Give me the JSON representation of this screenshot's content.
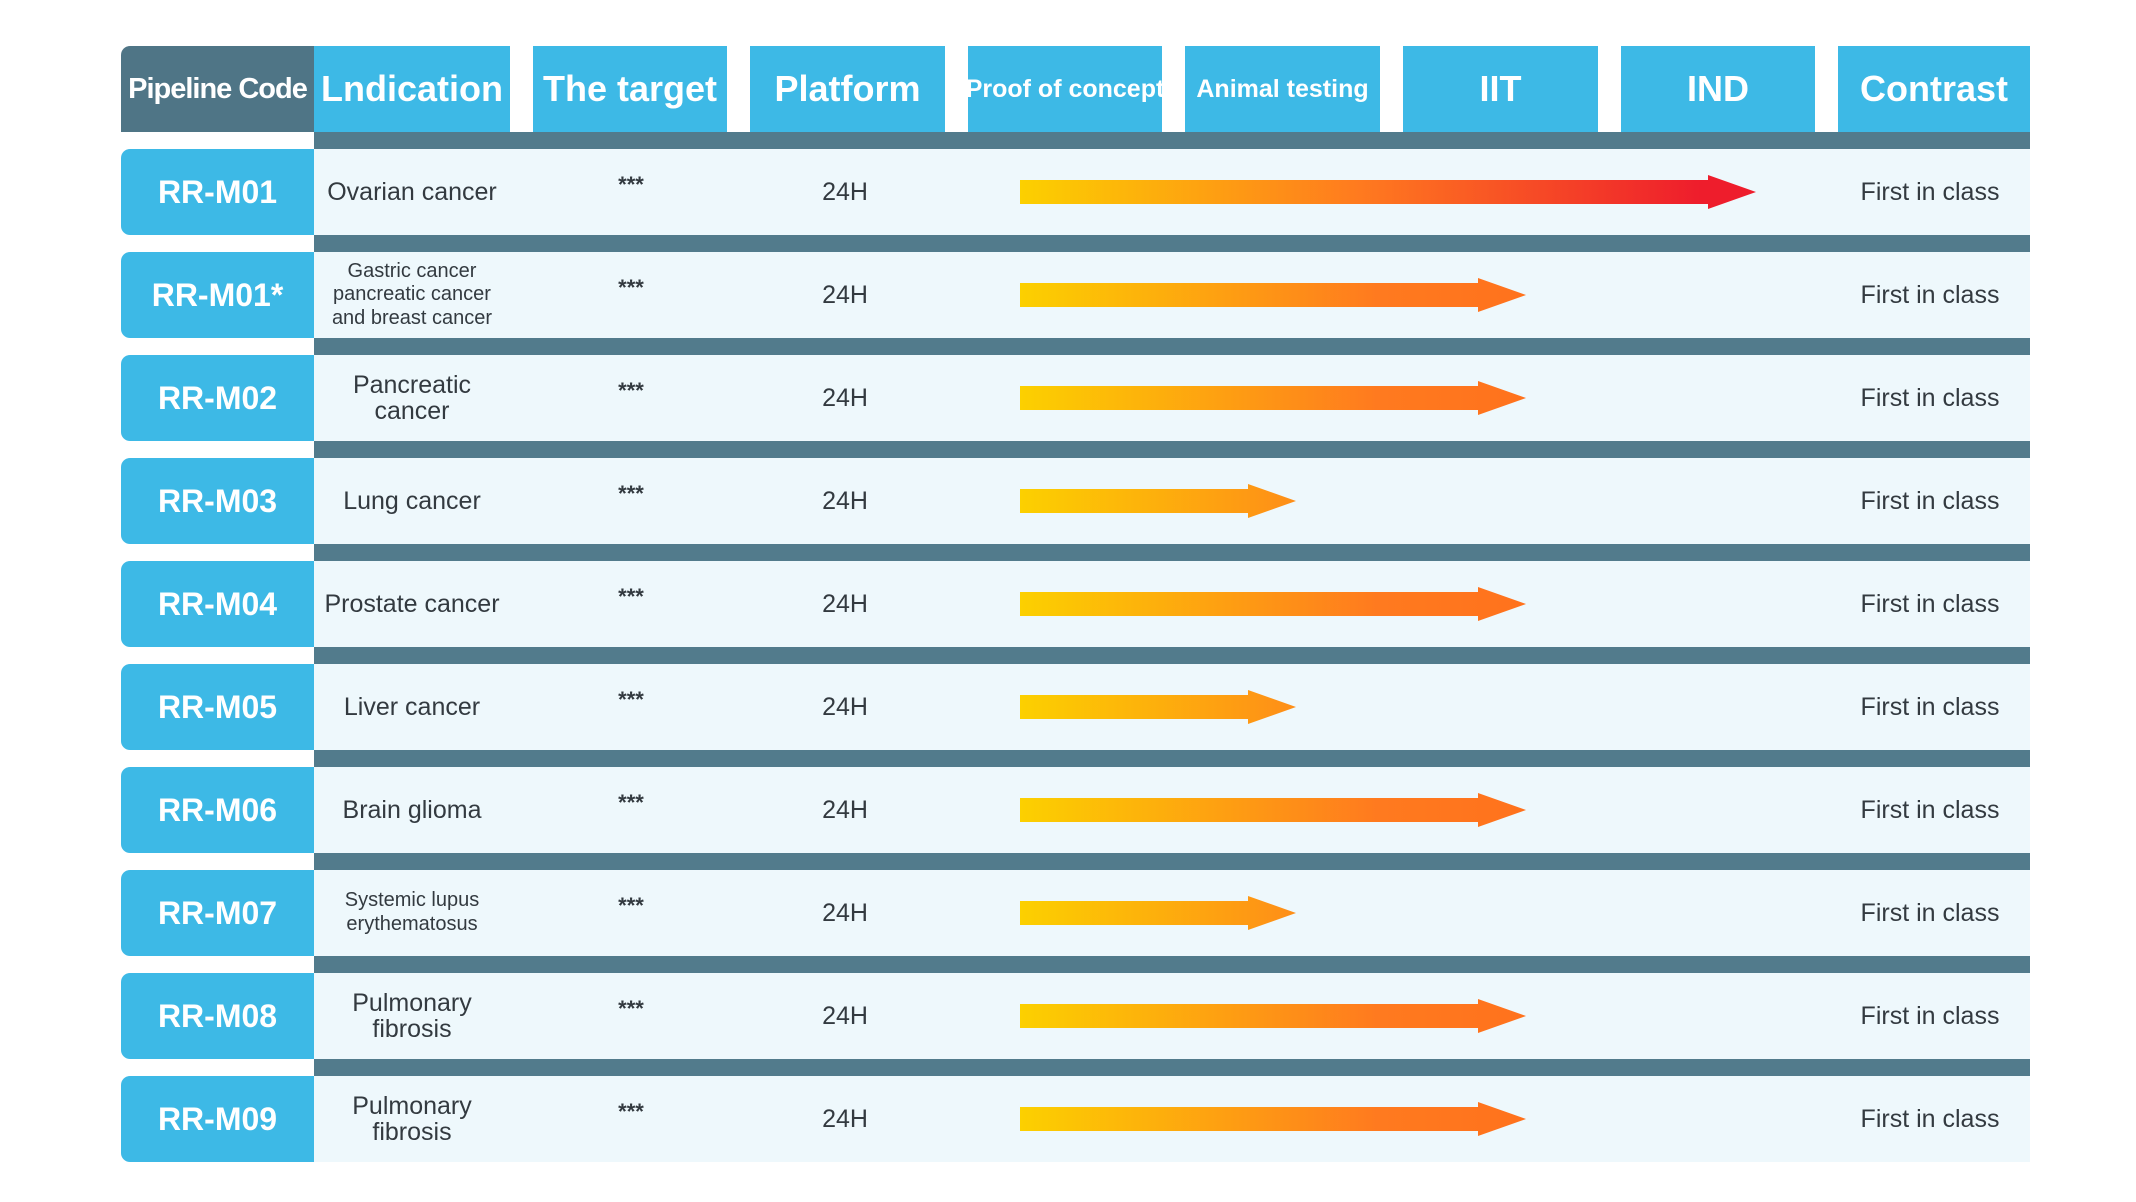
{
  "headers": {
    "code": "Pipeline Code",
    "indication": "Lndication",
    "target": "The target",
    "platform": "Platform",
    "proof": "Proof of concept",
    "animal": "Animal testing",
    "iit": "IIT",
    "ind": "IND",
    "contrast": "Contrast"
  },
  "rows": [
    {
      "code": "RR-M01",
      "indication": "Ovarian cancer",
      "target": "***",
      "platform": "24H",
      "contrast": "First in class"
    },
    {
      "code": "RR-M01*",
      "indication": "Gastric cancer\npancreatic cancer\nand breast cancer",
      "target": "***",
      "platform": "24H",
      "contrast": "First in class"
    },
    {
      "code": "RR-M02",
      "indication": "Pancreatic cancer",
      "target": "***",
      "platform": "24H",
      "contrast": "First in class"
    },
    {
      "code": "RR-M03",
      "indication": "Lung cancer",
      "target": "***",
      "platform": "24H",
      "contrast": "First in class"
    },
    {
      "code": "RR-M04",
      "indication": "Prostate cancer",
      "target": "***",
      "platform": "24H",
      "contrast": "First in class"
    },
    {
      "code": "RR-M05",
      "indication": "Liver cancer",
      "target": "***",
      "platform": "24H",
      "contrast": "First in class"
    },
    {
      "code": "RR-M06",
      "indication": "Brain glioma",
      "target": "***",
      "platform": "24H",
      "contrast": "First in class"
    },
    {
      "code": "RR-M07",
      "indication": "Systemic lupus\nerythematosus",
      "target": "***",
      "platform": "24H",
      "contrast": "First in class"
    },
    {
      "code": "RR-M08",
      "indication": "Pulmonary fibrosis",
      "target": "***",
      "platform": "24H",
      "contrast": "First in class"
    },
    {
      "code": "RR-M09",
      "indication": "Pulmonary fibrosis",
      "target": "***",
      "platform": "24H",
      "contrast": "First in class"
    }
  ],
  "chart_data": {
    "type": "table",
    "stages": [
      "Proof of concept",
      "Animal testing",
      "IIT",
      "IND"
    ],
    "progress_stage_end": [
      3.2,
      2.2,
      2.2,
      1.2,
      2.2,
      1.2,
      2.2,
      1.2,
      2.2,
      2.2
    ],
    "arrow_colors": {
      "start": "#fcd000",
      "mid": "#ff7a1f",
      "end": "#ee1d2c"
    }
  }
}
